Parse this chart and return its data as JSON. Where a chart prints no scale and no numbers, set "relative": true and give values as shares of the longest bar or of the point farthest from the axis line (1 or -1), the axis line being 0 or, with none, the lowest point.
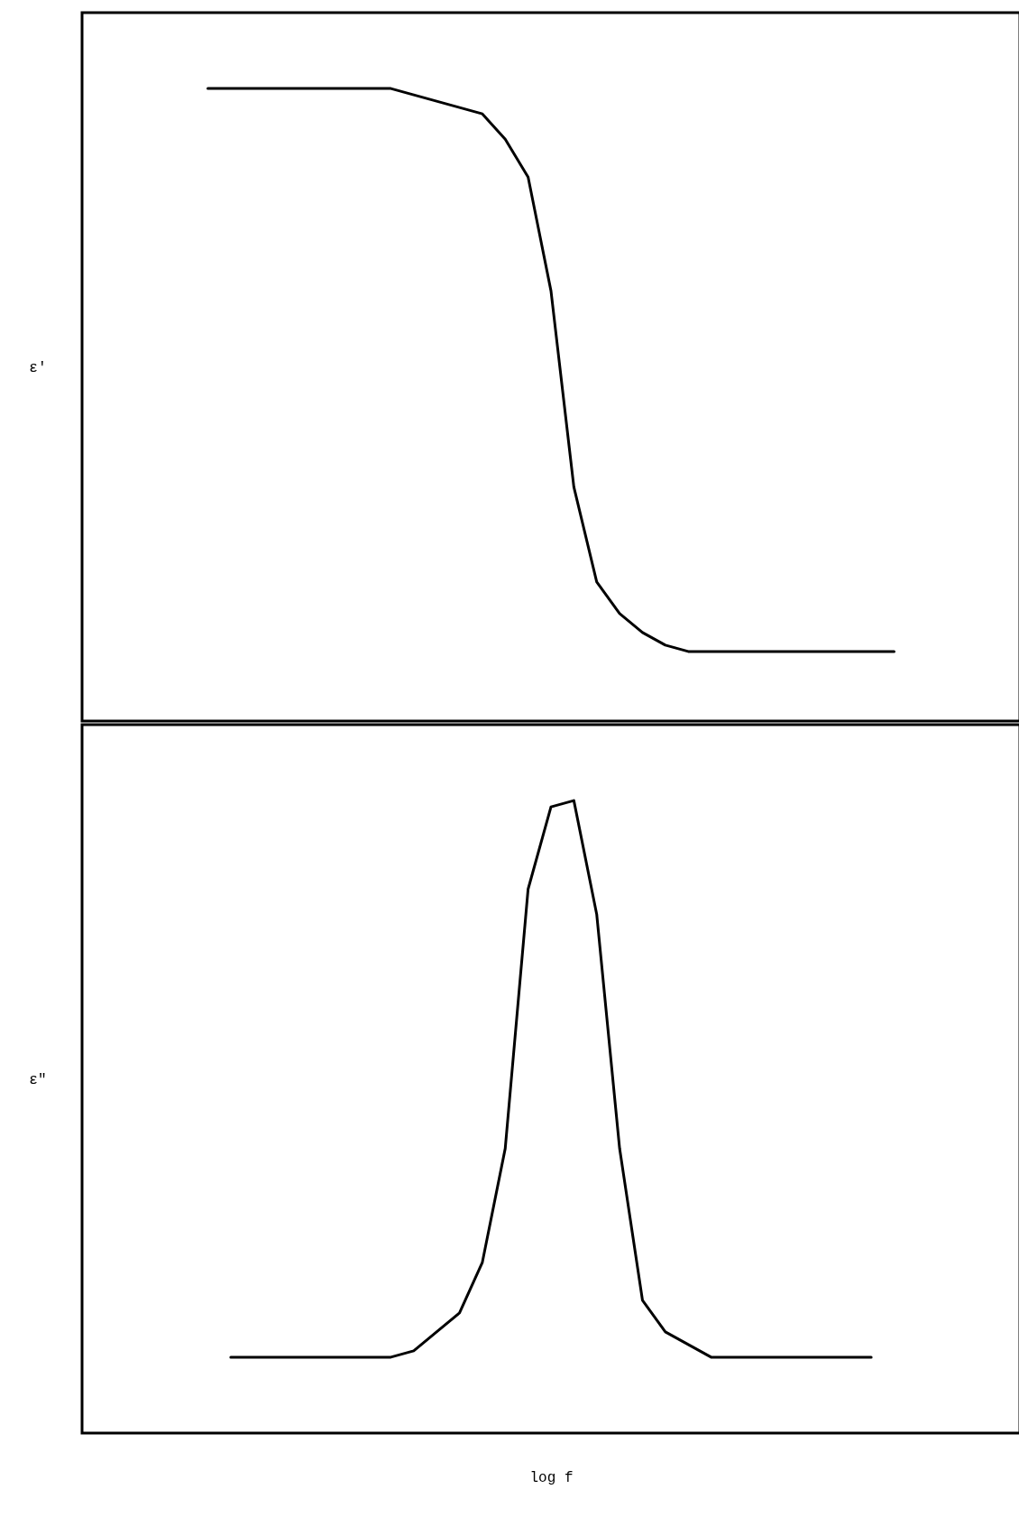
{
  "chart_data": [
    {
      "type": "line",
      "ylabel": "ε'",
      "relative": true,
      "categories": [
        null,
        null,
        null,
        null,
        null,
        null,
        null,
        null,
        null,
        null,
        null,
        null,
        null,
        null,
        null,
        null,
        null,
        null,
        null,
        null,
        null,
        null,
        null,
        null,
        null,
        null,
        null,
        null,
        null,
        null,
        null,
        null,
        null,
        null,
        null,
        null,
        null,
        null,
        null,
        null,
        null
      ],
      "series": [
        {
          "color": "#000000",
          "values": [
            null,
            null,
            null,
            null,
            null,
            1.0,
            1.0,
            1.0,
            1.0,
            1.0,
            1.0,
            1.0,
            1.0,
            1.0,
            0.99,
            0.98,
            0.97,
            0.96,
            0.92,
            0.86,
            0.68,
            0.37,
            0.22,
            0.17,
            0.14,
            0.12,
            0.11,
            0.11,
            0.11,
            0.11,
            0.11,
            0.11,
            0.11,
            0.11,
            0.11,
            0.11,
            null,
            null,
            null,
            null,
            null
          ]
        }
      ]
    },
    {
      "type": "line",
      "ylabel": "ε\"",
      "xlabel": "log f",
      "relative": true,
      "categories": [
        null,
        null,
        null,
        null,
        null,
        null,
        null,
        null,
        null,
        null,
        null,
        null,
        null,
        null,
        null,
        null,
        null,
        null,
        null,
        null,
        null,
        null,
        null,
        null,
        null,
        null,
        null,
        null,
        null,
        null,
        null,
        null,
        null,
        null,
        null,
        null,
        null,
        null,
        null,
        null,
        null
      ],
      "series": [
        {
          "color": "#000000",
          "values": [
            null,
            null,
            null,
            null,
            null,
            null,
            0.12,
            0.12,
            0.12,
            0.12,
            0.12,
            0.12,
            0.12,
            0.12,
            0.13,
            0.16,
            0.19,
            0.27,
            0.45,
            0.86,
            0.99,
            1.0,
            0.82,
            0.45,
            0.21,
            0.16,
            0.14,
            0.12,
            0.12,
            0.12,
            0.12,
            0.12,
            0.12,
            0.12,
            0.12,
            null,
            null,
            null,
            null,
            null,
            null
          ]
        }
      ]
    }
  ]
}
